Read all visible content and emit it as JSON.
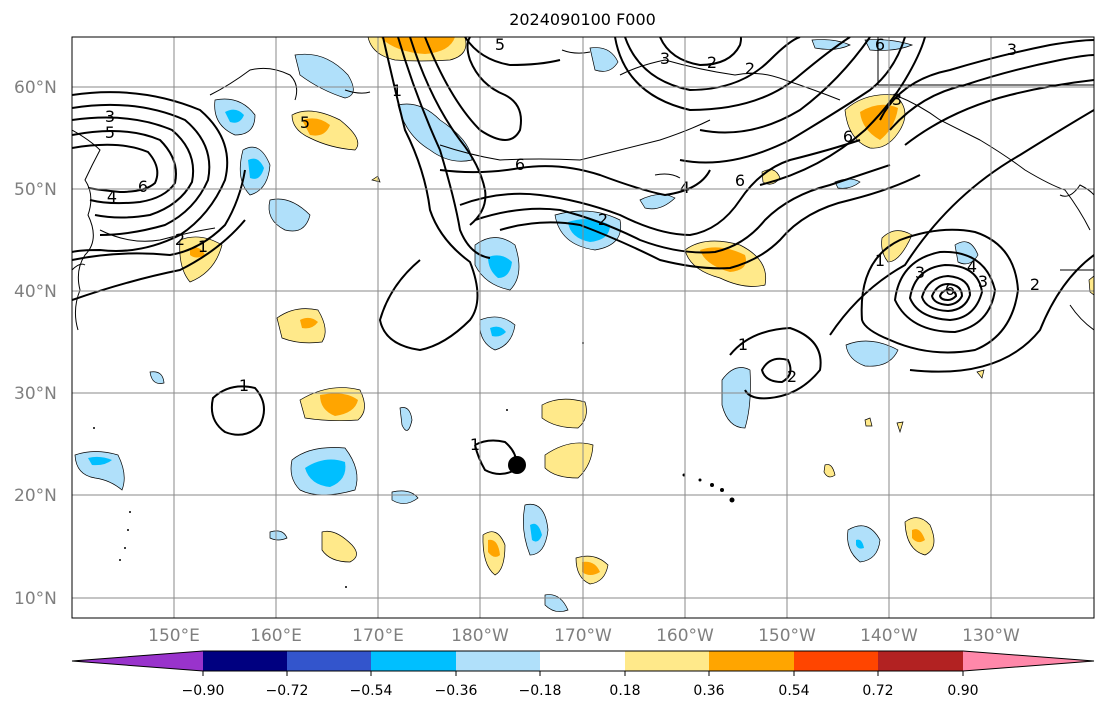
{
  "title": "2024090100 F000",
  "map": {
    "type": "contour and shaded anomaly map",
    "lat_labels": [
      "60°N",
      "50°N",
      "40°N",
      "30°N",
      "20°N",
      "10°N"
    ],
    "lon_labels": [
      "150°E",
      "160°E",
      "170°E",
      "180°W",
      "170°W",
      "160°W",
      "150°W",
      "140°W",
      "130°W"
    ],
    "contour_labels": [
      "5",
      "3",
      "5",
      "6",
      "4",
      "2",
      "1",
      "1",
      "5",
      "6",
      "4",
      "6",
      "2",
      "6",
      "3",
      "2",
      "2",
      "6",
      "3",
      "3",
      "1",
      "3",
      "4",
      "6",
      "3",
      "2",
      "1",
      "2",
      "1",
      "1"
    ],
    "marker": "storm center dot"
  },
  "colorbar": {
    "tick_labels": [
      "−0.90",
      "−0.72",
      "−0.54",
      "−0.36",
      "−0.18",
      "0.18",
      "0.36",
      "0.54",
      "0.72",
      "0.90"
    ],
    "colors": [
      "#9933cc",
      "#000080",
      "#3355cc",
      "#00bfff",
      "#b0e0fa",
      "#ffffff",
      "#ffe98a",
      "#ffa500",
      "#ff4500",
      "#b22222",
      "#ff88aa"
    ]
  }
}
